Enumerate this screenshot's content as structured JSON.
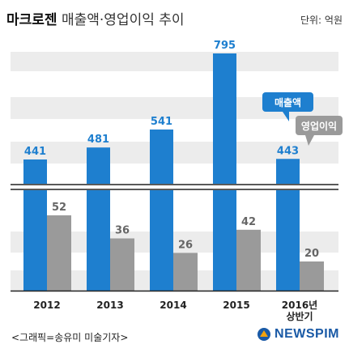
{
  "header": {
    "title_bold": "마크로젠",
    "title_rest": "매출액·영업이익 추이",
    "unit": "단위: 억원"
  },
  "chart_data": {
    "type": "bar",
    "categories": [
      "2012",
      "2013",
      "2014",
      "2015",
      "2016년\n상반기"
    ],
    "series": [
      {
        "name": "매출액",
        "values": [
          441,
          481,
          541,
          795,
          443
        ],
        "color": "#1e7fcf"
      },
      {
        "name": "영업이익",
        "values": [
          52,
          36,
          26,
          42,
          20
        ],
        "color": "#9a9a9a"
      }
    ],
    "axis_break": true,
    "grid": "horizontal bands",
    "legend": "callouts near 2016 bars"
  },
  "footer": {
    "source": "<그래픽=송유미 미술기자>",
    "logo": "NEWSPIM",
    "logo_color": "#1a5aa6"
  }
}
